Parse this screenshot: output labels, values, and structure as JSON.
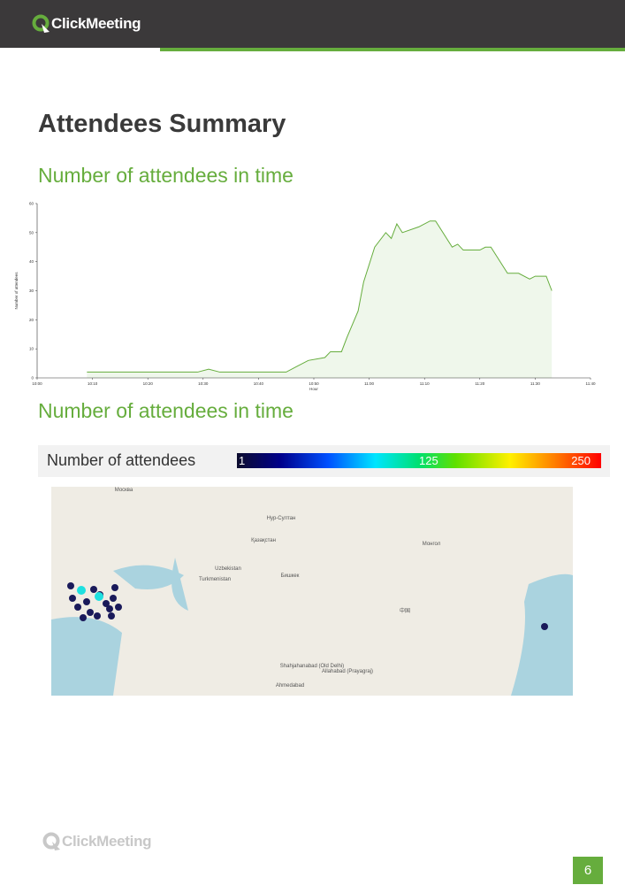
{
  "header": {
    "logo": "ClickMeeting"
  },
  "title": "Attendees Summary",
  "chart_data": {
    "type": "area",
    "title": "Number of attendees in time",
    "x_label": "Hour",
    "y_label": "Number of attendees",
    "color": "#66ad3d",
    "x": [
      "10:09",
      "10:29",
      "10:31",
      "10:33",
      "10:45",
      "10:47",
      "10:49",
      "10:52",
      "10:53",
      "10:55",
      "10:56",
      "10:58",
      "10:59",
      "11:01",
      "11:03",
      "11:04",
      "11:05",
      "11:06",
      "11:09",
      "11:11",
      "11:12",
      "11:15",
      "11:16",
      "11:17",
      "11:20",
      "11:21",
      "11:22",
      "11:25",
      "11:27",
      "11:29",
      "11:30",
      "11:32",
      "11:33"
    ],
    "values": [
      2,
      2,
      3,
      2,
      2,
      4,
      6,
      7,
      9,
      9,
      14,
      23,
      33,
      45,
      50,
      48,
      53,
      50,
      52,
      54,
      54,
      45,
      46,
      44,
      44,
      45,
      45,
      36,
      36,
      34,
      35,
      35,
      30
    ],
    "xlim": [
      "10:00",
      "11:40"
    ],
    "xticks": [
      "10:00",
      "10:10",
      "10:20",
      "10:30",
      "10:40",
      "10:50",
      "11:00",
      "11:10",
      "11:20",
      "11:30",
      "11:40"
    ],
    "ylim": [
      0,
      60
    ],
    "yticks": [
      0,
      10,
      20,
      30,
      40,
      50,
      60
    ]
  },
  "map": {
    "title": "Number of attendees in time",
    "legend_label": "Number of attendees",
    "scale": [
      1,
      125,
      250
    ],
    "labels": [
      "Москва",
      "Нур-Султан",
      "Қазақстан",
      "Uzbekistan",
      "Turkmenistan",
      "Бишкек",
      "Монгол",
      "中国",
      "Ahmedabad",
      "Shahjahanabad (Old Delhi)",
      "Allahabad (Prayagraj)"
    ]
  },
  "footer": {
    "logo": "ClickMeeting",
    "page": "6"
  }
}
